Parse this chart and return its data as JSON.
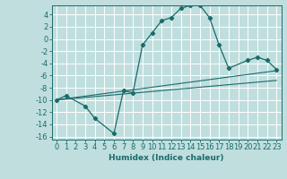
{
  "xlabel": "Humidex (Indice chaleur)",
  "background_color": "#c0dede",
  "grid_color": "#ffffff",
  "line_color": "#1a6b6b",
  "xlim": [
    -0.5,
    23.5
  ],
  "ylim": [
    -16.5,
    5.5
  ],
  "xticks": [
    0,
    1,
    2,
    3,
    4,
    5,
    6,
    7,
    8,
    9,
    10,
    11,
    12,
    13,
    14,
    15,
    16,
    17,
    18,
    19,
    20,
    21,
    22,
    23
  ],
  "yticks": [
    -16,
    -14,
    -12,
    -10,
    -8,
    -6,
    -4,
    -2,
    0,
    2,
    4
  ],
  "curve1_x": [
    0,
    1,
    3,
    4,
    6,
    7,
    8,
    9,
    10,
    11,
    12,
    13,
    14,
    15,
    16,
    17,
    18,
    20,
    21,
    22,
    23
  ],
  "curve1_y": [
    -10,
    -9.3,
    -11,
    -13,
    -15.5,
    -8.5,
    -8.8,
    -1,
    1,
    3,
    3.5,
    5,
    5.5,
    5.5,
    3.5,
    -1.0,
    -4.8,
    -3.5,
    -3.0,
    -3.5,
    -5.0
  ],
  "curve2_x": [
    0,
    23
  ],
  "curve2_y": [
    -10,
    -5.2
  ],
  "curve3_x": [
    0,
    23
  ],
  "curve3_y": [
    -10,
    -6.8
  ],
  "font_size": 6.5
}
